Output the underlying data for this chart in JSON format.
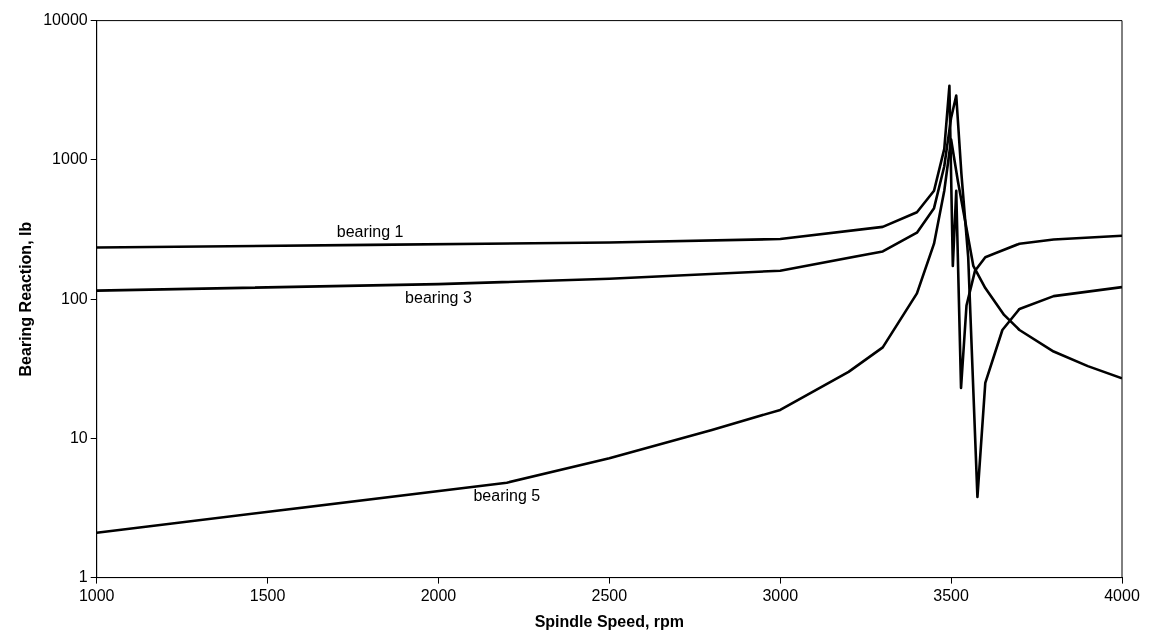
{
  "chart_data": {
    "type": "line",
    "xlabel": "Spindle Speed, rpm",
    "ylabel": "Bearing Reaction, lb",
    "xlim": [
      1000,
      4000
    ],
    "xticks": [
      1000,
      1500,
      2000,
      2500,
      3000,
      3500,
      4000
    ],
    "ylim": [
      1,
      10000
    ],
    "yticks": [
      1,
      10,
      100,
      1000,
      10000
    ],
    "log": "y",
    "grid": false,
    "legend": false,
    "marker": "none",
    "line_style": "solid",
    "series": [
      {
        "name": "bearing 1",
        "color": "#000000",
        "x": [
          1000,
          1800,
          2500,
          3000,
          3300,
          3400,
          3450,
          3480,
          3495,
          3505,
          3515,
          3529,
          3545,
          3570,
          3600,
          3700,
          3800,
          4000
        ],
        "values": [
          235,
          245,
          255,
          270,
          330,
          420,
          600,
          1200,
          3400,
          173,
          600,
          23,
          90,
          160,
          200,
          250,
          268,
          285
        ]
      },
      {
        "name": "bearing 3",
        "color": "#000000",
        "x": [
          1000,
          2000,
          2500,
          3000,
          3300,
          3400,
          3450,
          3480,
          3500,
          3515,
          3530,
          3550,
          3577,
          3600,
          3650,
          3700,
          3800,
          4000
        ],
        "values": [
          115,
          128,
          140,
          160,
          220,
          300,
          450,
          900,
          2000,
          2900,
          800,
          200,
          3.8,
          25,
          60,
          85,
          105,
          122
        ]
      },
      {
        "name": "bearing 5",
        "color": "#000000",
        "x": [
          1000,
          2200,
          2500,
          2800,
          3000,
          3200,
          3300,
          3400,
          3450,
          3480,
          3500,
          3520,
          3565,
          3600,
          3655,
          3700,
          3800,
          3900,
          4000
        ],
        "values": [
          2.1,
          4.8,
          7.2,
          11.5,
          16,
          30,
          45,
          110,
          250,
          600,
          1400,
          700,
          173,
          120,
          77,
          60,
          42,
          33,
          27
        ]
      }
    ]
  }
}
